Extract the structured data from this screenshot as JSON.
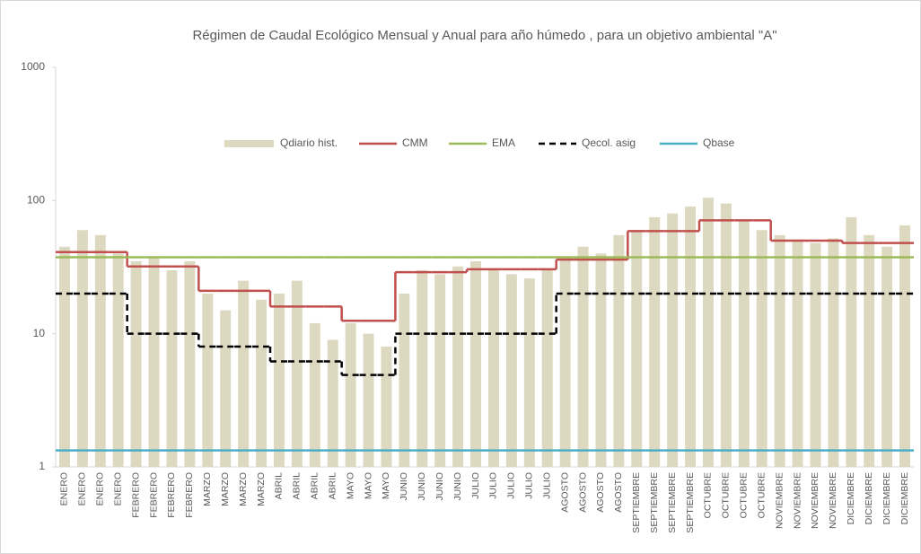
{
  "chart_data": {
    "type": "bar",
    "title": "Régimen de Caudal Ecológico Mensual y Anual para año húmedo , para un objetivo ambiental \"A\"",
    "categories": [
      "ENERO",
      "ENERO",
      "ENERO",
      "ENERO",
      "FEBRERO",
      "FEBRERO",
      "FEBRERO",
      "FEBRERO",
      "MARZO",
      "MARZO",
      "MARZO",
      "MARZO",
      "ABRIL",
      "ABRIL",
      "ABRIL",
      "ABRIL",
      "MAYO",
      "MAYO",
      "MAYO",
      "JUNIO",
      "JUNIO",
      "JUNIO",
      "JUNIO",
      "JULIO",
      "JULIO",
      "JULIO",
      "JULIO",
      "JULIO",
      "AGOSTO",
      "AGOSTO",
      "AGOSTO",
      "AGOSTO",
      "SEPTIEMBRE",
      "SEPTIEMBRE",
      "SEPTIEMBRE",
      "SEPTIEMBRE",
      "OCTUBRE",
      "OCTUBRE",
      "OCTUBRE",
      "OCTUBRE",
      "NOVIEMBRE",
      "NOVIEMBRE",
      "NOVIEMBRE",
      "NOVIEMBRE",
      "DICIEMBRE",
      "DICIEMBRE",
      "DICIEMBRE",
      "DICIEMBRE"
    ],
    "series": [
      {
        "name": "Qdiario hist.",
        "type": "bar",
        "color": "#ddd8c0",
        "values": [
          45,
          60,
          55,
          40,
          35,
          38,
          30,
          35,
          20,
          15,
          25,
          18,
          20,
          25,
          12,
          9,
          12,
          10,
          8,
          20,
          30,
          28,
          32,
          35,
          30,
          28,
          26,
          30,
          38,
          45,
          40,
          55,
          60,
          75,
          80,
          90,
          105,
          95,
          70,
          60,
          55,
          50,
          48,
          52,
          75,
          55,
          45,
          65
        ]
      },
      {
        "name": "CMM",
        "type": "step",
        "color": "#c0504d",
        "dash": false,
        "values": [
          41,
          41,
          41,
          41,
          32,
          32,
          32,
          32,
          21,
          21,
          21,
          21,
          16,
          16,
          16,
          16,
          12.5,
          12.5,
          12.5,
          29,
          29,
          29,
          29,
          30.5,
          30.5,
          30.5,
          30.5,
          30.5,
          36,
          36,
          36,
          36,
          59,
          59,
          59,
          59,
          71,
          71,
          71,
          71,
          50,
          50,
          50,
          50,
          48,
          48,
          48,
          48
        ]
      },
      {
        "name": "EMA",
        "type": "step",
        "color": "#9bbb59",
        "dash": false,
        "values": [
          37.5,
          37.5,
          37.5,
          37.5,
          37.5,
          37.5,
          37.5,
          37.5,
          37.5,
          37.5,
          37.5,
          37.5,
          37.5,
          37.5,
          37.5,
          37.5,
          37.5,
          37.5,
          37.5,
          37.5,
          37.5,
          37.5,
          37.5,
          37.5,
          37.5,
          37.5,
          37.5,
          37.5,
          37.5,
          37.5,
          37.5,
          37.5,
          37.5,
          37.5,
          37.5,
          37.5,
          37.5,
          37.5,
          37.5,
          37.5,
          37.5,
          37.5,
          37.5,
          37.5,
          37.5,
          37.5,
          37.5,
          37.5
        ]
      },
      {
        "name": "Qecol. asig",
        "type": "step",
        "color": "#000000",
        "dash": true,
        "values": [
          20,
          20,
          20,
          20,
          10,
          10,
          10,
          10,
          8,
          8,
          8,
          8,
          6.2,
          6.2,
          6.2,
          6.2,
          4.9,
          4.9,
          4.9,
          10,
          10,
          10,
          10,
          10,
          10,
          10,
          10,
          10,
          20,
          20,
          20,
          20,
          20,
          20,
          20,
          20,
          20,
          20,
          20,
          20,
          20,
          20,
          20,
          20,
          20,
          20,
          20,
          20
        ]
      },
      {
        "name": "Qbase",
        "type": "step",
        "color": "#4bacc6",
        "dash": false,
        "values": [
          1.33,
          1.33,
          1.33,
          1.33,
          1.33,
          1.33,
          1.33,
          1.33,
          1.33,
          1.33,
          1.33,
          1.33,
          1.33,
          1.33,
          1.33,
          1.33,
          1.33,
          1.33,
          1.33,
          1.33,
          1.33,
          1.33,
          1.33,
          1.33,
          1.33,
          1.33,
          1.33,
          1.33,
          1.33,
          1.33,
          1.33,
          1.33,
          1.33,
          1.33,
          1.33,
          1.33,
          1.33,
          1.33,
          1.33,
          1.33,
          1.33,
          1.33,
          1.33,
          1.33,
          1.33,
          1.33,
          1.33,
          1.33
        ]
      }
    ],
    "ylim": [
      1,
      1000
    ],
    "yticks": [
      1,
      10,
      100,
      1000
    ],
    "log_y": true,
    "grid": false
  }
}
